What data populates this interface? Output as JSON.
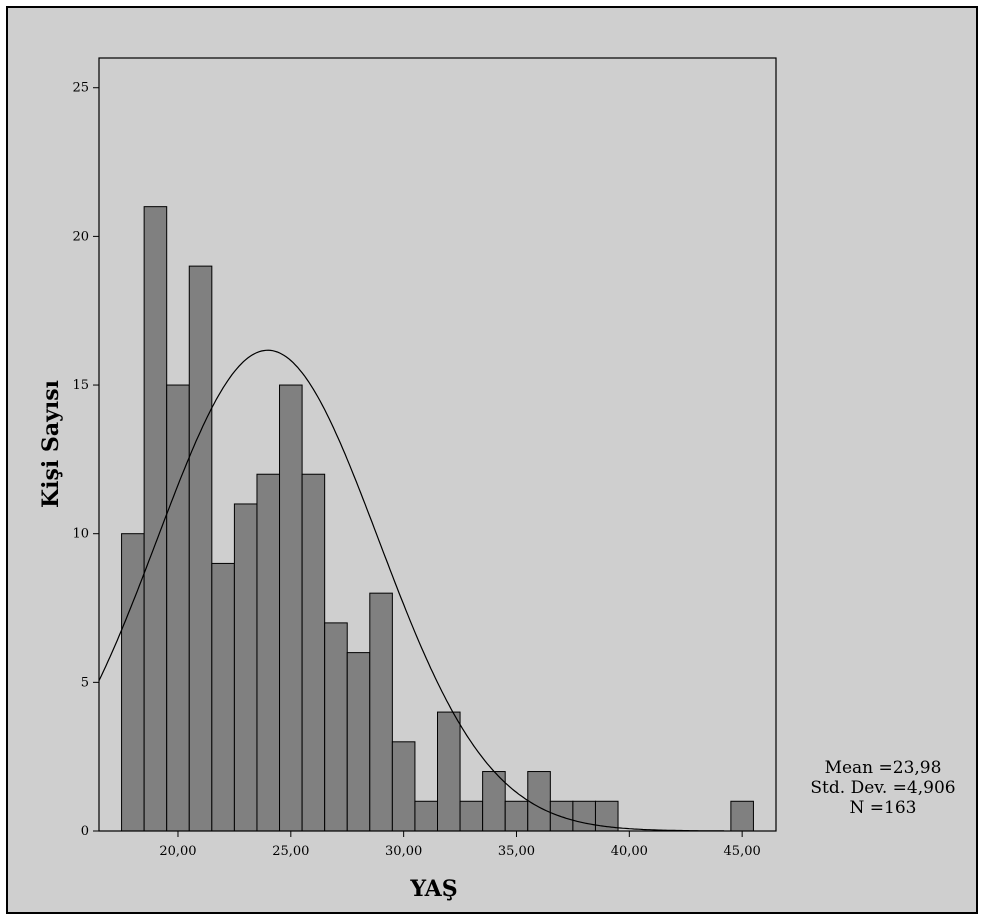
{
  "chart_data": {
    "type": "bar",
    "xlabel": "YAŞ",
    "ylabel": "Kişi Sayısı",
    "bin_width": 1.5,
    "x": [
      18.0,
      19.0,
      20.0,
      21.0,
      22.0,
      23.0,
      24.0,
      25.0,
      26.0,
      27.0,
      28.0,
      29.0,
      30.0,
      31.0,
      32.0,
      33.0,
      34.0,
      35.0,
      36.0,
      37.0,
      38.0,
      39.0,
      40.0,
      41.0,
      42.0,
      43.0,
      44.0,
      45.0
    ],
    "values": [
      10,
      21,
      15,
      19,
      9,
      11,
      12,
      15,
      12,
      7,
      6,
      8,
      3,
      1,
      4,
      1,
      2,
      1,
      2,
      1,
      1,
      1,
      0,
      0,
      0,
      0,
      0,
      1
    ],
    "normal_curve": {
      "mean": 23.98,
      "std": 4.906,
      "n": 163
    },
    "xlim": [
      16.5,
      46.5
    ],
    "ylim": [
      0,
      26
    ],
    "x_ticks": [
      20,
      25,
      30,
      35,
      40,
      45
    ],
    "x_tick_labels": [
      "20,00",
      "25,00",
      "30,00",
      "35,00",
      "40,00",
      "45,00"
    ],
    "y_ticks": [
      0,
      5,
      10,
      15,
      20,
      25
    ],
    "y_tick_labels": [
      "0",
      "5",
      "10",
      "15",
      "20",
      "25"
    ],
    "colors": {
      "background": "#cfcfcf",
      "bar_fill": "#808080",
      "bar_stroke": "#000000",
      "curve": "#000000"
    }
  },
  "stats": {
    "mean": "Mean =23,98",
    "std_dev": "Std. Dev. =4,906",
    "n": "N =163"
  }
}
